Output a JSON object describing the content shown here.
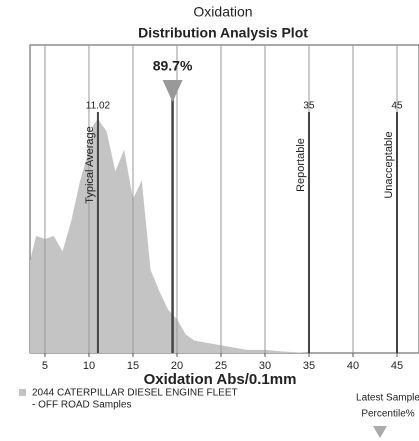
{
  "chart_data": {
    "type": "area",
    "title": "Oxidation",
    "subtitle": "Distribution Analysis Plot",
    "x_label": "Oxidation Abs/0.1mm",
    "x": [
      3.3,
      4,
      5,
      6,
      7,
      8,
      9,
      10,
      10.5,
      11,
      12,
      13,
      14,
      15,
      16,
      17,
      18,
      19,
      20,
      21,
      22,
      24,
      26,
      28,
      30,
      32,
      35,
      47.5
    ],
    "series": [
      {
        "name": "2044 CATERPILLAR DIESEL ENGINE FLEET",
        "color": "#c4c4c4",
        "values": [
          30,
          38,
          37,
          38,
          33,
          43,
          56,
          66,
          74,
          76,
          72,
          59,
          66,
          50,
          56,
          27,
          20,
          14,
          11,
          6,
          4,
          3,
          2,
          1,
          1,
          0.5,
          0,
          0
        ]
      }
    ],
    "legend_subtitle": "- OFF ROAD Samples",
    "xlim": [
      3.3,
      47.5
    ],
    "ylim": [
      0,
      100
    ],
    "xticks": [
      5,
      10,
      15,
      20,
      25,
      30,
      35,
      40,
      45
    ],
    "grid": true,
    "reference_lines": [
      {
        "x": 11.02,
        "name": "Typical Average"
      },
      {
        "x": 35,
        "name": "Reportable"
      },
      {
        "x": 45,
        "name": "Unacceptable"
      }
    ],
    "latest_sample": {
      "name": "Latest Sample",
      "unit_label": "Percentile%",
      "x": 19.5,
      "percentile": 89.7,
      "percentile_label": "89.7%"
    }
  }
}
